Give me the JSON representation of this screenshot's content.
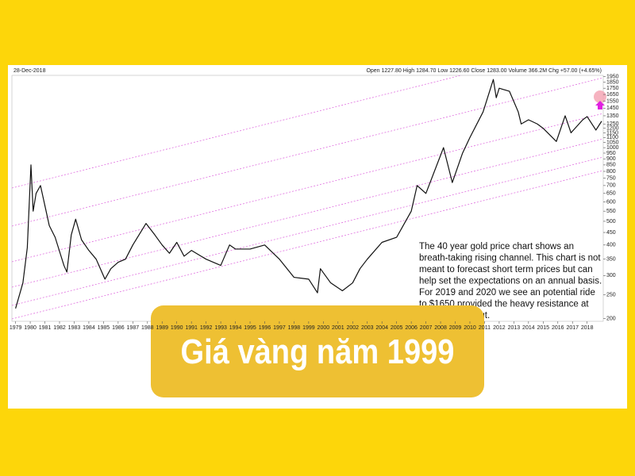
{
  "chart_data": {
    "type": "line",
    "date_label": "28-Dec-2018",
    "quote_label": "Open 1227.80  High 1284.70  Low 1226.60  Close 1283.00  Volume 366.2M  Chg +57.00 (+4.65%)",
    "annotation": [
      "The 40 year gold price chart shows an",
      "breath-taking rising channel. This chart is not",
      "meant to forecast short term prices but can",
      "help set the expectations on an annual basis.",
      "For 2019 and 2020 we see an potential ride",
      "to $1650 provided the heavy resistance at",
      "out."
    ],
    "x": [
      1979.0,
      1979.5,
      1979.8,
      1980.05,
      1980.2,
      1980.4,
      1980.7,
      1981.0,
      1981.3,
      1981.7,
      1982.3,
      1982.5,
      1982.8,
      1983.1,
      1983.5,
      1984.0,
      1984.5,
      1985.1,
      1985.5,
      1986.0,
      1986.5,
      1987.0,
      1987.9,
      1988.5,
      1989.0,
      1989.5,
      1990.0,
      1990.5,
      1991.0,
      1992.0,
      1993.0,
      1993.6,
      1994.0,
      1995.0,
      1996.0,
      1997.0,
      1998.0,
      1999.0,
      1999.6,
      1999.8,
      2000.5,
      2001.3,
      2002.0,
      2002.5,
      2003.0,
      2004.0,
      2005.0,
      2006.0,
      2006.4,
      2007.0,
      2008.2,
      2008.8,
      2009.5,
      2010.0,
      2010.9,
      2011.6,
      2011.8,
      2012.0,
      2012.7,
      2013.3,
      2013.5,
      2014.0,
      2014.6,
      2015.0,
      2015.9,
      2016.5,
      2016.9,
      2017.7,
      2018.0,
      2018.6,
      2018.99
    ],
    "values": [
      220,
      280,
      390,
      850,
      550,
      650,
      700,
      580,
      480,
      430,
      330,
      310,
      440,
      510,
      420,
      380,
      350,
      290,
      320,
      340,
      350,
      400,
      490,
      440,
      400,
      370,
      410,
      360,
      380,
      350,
      330,
      400,
      385,
      385,
      400,
      350,
      295,
      290,
      255,
      320,
      280,
      260,
      280,
      320,
      350,
      410,
      430,
      550,
      700,
      650,
      1000,
      720,
      950,
      1100,
      1400,
      1900,
      1600,
      1750,
      1700,
      1400,
      1250,
      1300,
      1250,
      1200,
      1060,
      1350,
      1150,
      1300,
      1340,
      1180,
      1283
    ],
    "color": "#111111",
    "log_scale": true,
    "xlim": [
      1978.75,
      2019.1
    ],
    "xticks": [
      1979,
      1980,
      1981,
      1982,
      1983,
      1984,
      1985,
      1986,
      1987,
      1988,
      1989,
      1990,
      1991,
      1992,
      1993,
      1994,
      1995,
      1996,
      1997,
      1998,
      1999,
      2000,
      2001,
      2002,
      2003,
      2004,
      2005,
      2006,
      2007,
      2008,
      2009,
      2010,
      2011,
      2012,
      2013,
      2014,
      2015,
      2016,
      2017,
      2018
    ],
    "ylim": [
      195,
      1975
    ],
    "yticks": [
      200,
      250,
      300,
      350,
      400,
      450,
      500,
      550,
      600,
      650,
      700,
      750,
      800,
      850,
      900,
      950,
      1000,
      1050,
      1100,
      1150,
      1200,
      1250,
      1350,
      1450,
      1550,
      1650,
      1750,
      1850,
      1950
    ],
    "grid": false
  },
  "banner": {
    "title": "Giá vàng năm 1999"
  }
}
